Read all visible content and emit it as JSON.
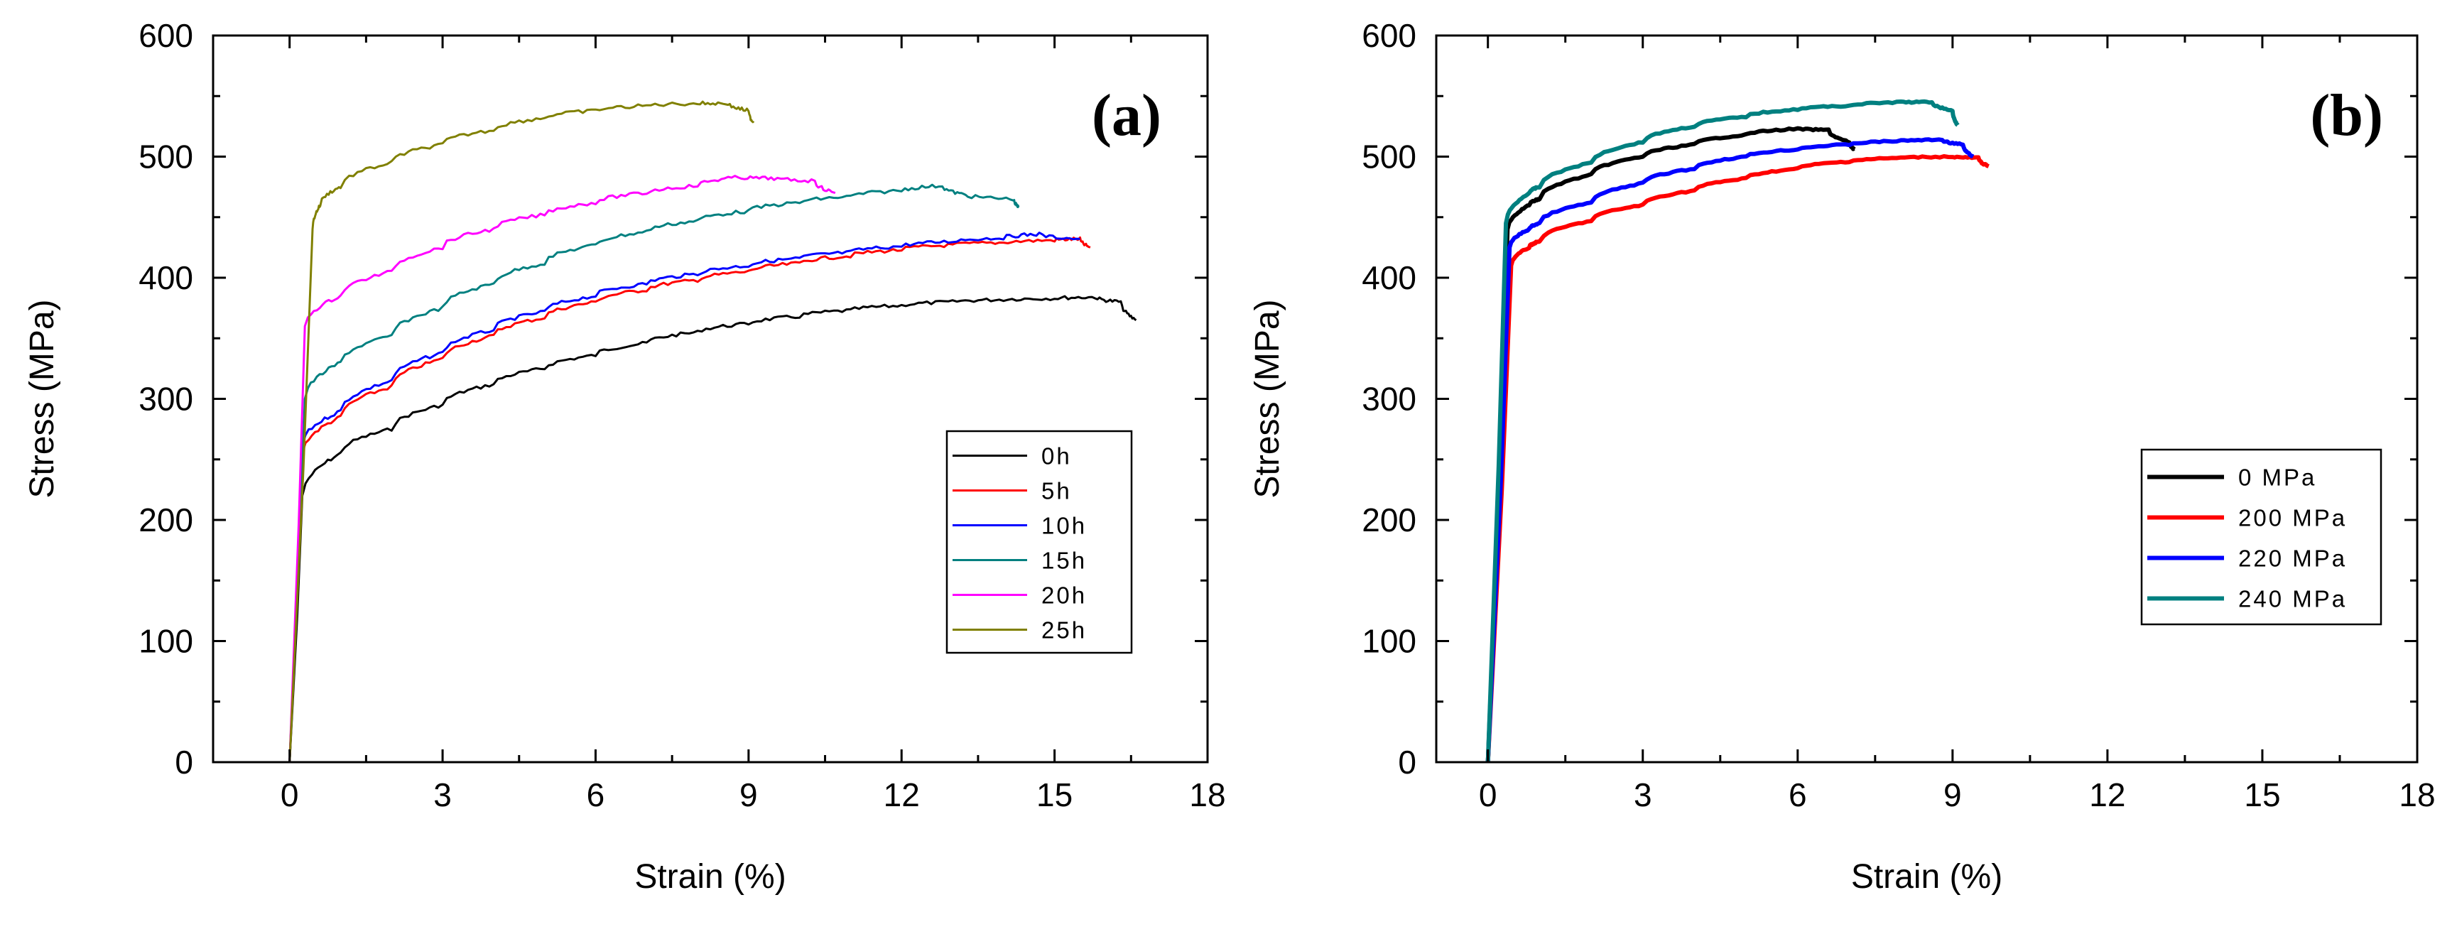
{
  "chart_data": [
    {
      "type": "line",
      "panel_label": "(a)",
      "xlabel": "Strain (%)",
      "ylabel": "Stress (MPa)",
      "xlim": [
        -1.5,
        18
      ],
      "ylim": [
        0,
        600
      ],
      "xticks": [
        0,
        3,
        6,
        9,
        12,
        15,
        18
      ],
      "yticks": [
        0,
        100,
        200,
        300,
        400,
        500,
        600
      ],
      "legend_position": "lower-right",
      "grid": false,
      "series": [
        {
          "name": "0h",
          "color": "#000000",
          "yield_strain": 0.25,
          "yield_stress": 220,
          "points": [
            [
              1,
              255
            ],
            [
              2,
              275
            ],
            [
              3,
              295
            ],
            [
              4,
              312
            ],
            [
              5,
              325
            ],
            [
              6,
              336
            ],
            [
              7,
              346
            ],
            [
              8,
              355
            ],
            [
              9,
              362
            ],
            [
              10,
              368
            ],
            [
              11,
              373
            ],
            [
              12,
              377
            ],
            [
              13,
              380
            ],
            [
              14,
              382
            ],
            [
              15,
              383
            ],
            [
              15.8,
              384
            ],
            [
              16.3,
              380
            ],
            [
              16.6,
              365
            ]
          ]
        },
        {
          "name": "5h",
          "color": "#ff0000",
          "yield_strain": 0.25,
          "yield_stress": 255,
          "points": [
            [
              1,
              285
            ],
            [
              2,
              310
            ],
            [
              3,
              333
            ],
            [
              4,
              352
            ],
            [
              5,
              367
            ],
            [
              6,
              380
            ],
            [
              7,
              390
            ],
            [
              8,
              398
            ],
            [
              9,
              405
            ],
            [
              10,
              412
            ],
            [
              11,
              418
            ],
            [
              12,
              423
            ],
            [
              13,
              427
            ],
            [
              14,
              429
            ],
            [
              15,
              431
            ],
            [
              15.5,
              432
            ],
            [
              15.7,
              425
            ]
          ]
        },
        {
          "name": "10h",
          "color": "#0000ff",
          "yield_strain": 0.25,
          "yield_stress": 262,
          "points": [
            [
              1,
              290
            ],
            [
              2,
              315
            ],
            [
              3,
              338
            ],
            [
              4,
              357
            ],
            [
              5,
              372
            ],
            [
              6,
              385
            ],
            [
              7,
              395
            ],
            [
              8,
              403
            ],
            [
              9,
              410
            ],
            [
              10,
              416
            ],
            [
              11,
              421
            ],
            [
              12,
              426
            ],
            [
              13,
              430
            ],
            [
              14,
              433
            ],
            [
              14.7,
              436
            ],
            [
              15.5,
              432
            ]
          ]
        },
        {
          "name": "15h",
          "color": "#008080",
          "yield_strain": 0.3,
          "yield_stress": 300,
          "points": [
            [
              1,
              330
            ],
            [
              2,
              352
            ],
            [
              3,
              375
            ],
            [
              4,
              395
            ],
            [
              5,
              412
            ],
            [
              6,
              427
            ],
            [
              7,
              438
            ],
            [
              8,
              447
            ],
            [
              9,
              455
            ],
            [
              10,
              462
            ],
            [
              11,
              467
            ],
            [
              12,
              472
            ],
            [
              12.8,
              476
            ],
            [
              13.3,
              468
            ],
            [
              14.2,
              465
            ],
            [
              14.3,
              458
            ]
          ]
        },
        {
          "name": "20h",
          "color": "#ff00ff",
          "yield_strain": 0.3,
          "yield_stress": 360,
          "points": [
            [
              1,
              385
            ],
            [
              2,
              405
            ],
            [
              3,
              425
            ],
            [
              4,
              440
            ],
            [
              5,
              452
            ],
            [
              6,
              462
            ],
            [
              7,
              470
            ],
            [
              8,
              476
            ],
            [
              8.8,
              483
            ],
            [
              9.5,
              482
            ],
            [
              10.3,
              480
            ],
            [
              10.7,
              470
            ]
          ]
        },
        {
          "name": "25h",
          "color": "#808000",
          "yield_strain": 0.45,
          "yield_stress": 440,
          "points": [
            [
              0.6,
              460
            ],
            [
              1,
              475
            ],
            [
              2,
              495
            ],
            [
              3,
              510
            ],
            [
              4,
              522
            ],
            [
              5,
              532
            ],
            [
              6,
              538
            ],
            [
              7,
              542
            ],
            [
              8,
              544
            ],
            [
              8.6,
              544
            ],
            [
              9,
              538
            ],
            [
              9.1,
              528
            ]
          ]
        }
      ]
    },
    {
      "type": "line",
      "panel_label": "(b)",
      "xlabel": "Strain (%)",
      "ylabel": "Stress (MPa)",
      "xlim": [
        -1,
        18
      ],
      "ylim": [
        0,
        600
      ],
      "xticks": [
        0,
        3,
        6,
        9,
        12,
        15,
        18
      ],
      "yticks": [
        0,
        100,
        200,
        300,
        400,
        500,
        600
      ],
      "legend_position": "left-center",
      "grid": false,
      "series": [
        {
          "name": "0 MPa",
          "color": "#000000",
          "yield_strain": 0.38,
          "yield_stress": 440,
          "points": [
            [
              0.8,
              460
            ],
            [
              1,
              465
            ],
            [
              2,
              485
            ],
            [
              3,
              500
            ],
            [
              4,
              510
            ],
            [
              5,
              518
            ],
            [
              6,
              523
            ],
            [
              6.6,
              522
            ],
            [
              7,
              512
            ],
            [
              7.1,
              506
            ]
          ]
        },
        {
          "name": "200 MPa",
          "color": "#ff0000",
          "yield_strain": 0.45,
          "yield_stress": 410,
          "points": [
            [
              0.8,
              425
            ],
            [
              1,
              430
            ],
            [
              2,
              447
            ],
            [
              3,
              460
            ],
            [
              4,
              472
            ],
            [
              5,
              482
            ],
            [
              6,
              490
            ],
            [
              7,
              496
            ],
            [
              8,
              499
            ],
            [
              9,
              500
            ],
            [
              9.5,
              499
            ],
            [
              9.7,
              492
            ]
          ]
        },
        {
          "name": "220 MPa",
          "color": "#0000ff",
          "yield_strain": 0.42,
          "yield_stress": 425,
          "points": [
            [
              0.8,
              440
            ],
            [
              1,
              445
            ],
            [
              2,
              462
            ],
            [
              3,
              478
            ],
            [
              4,
              490
            ],
            [
              5,
              500
            ],
            [
              6,
              506
            ],
            [
              7,
              510
            ],
            [
              8,
              513
            ],
            [
              8.8,
              514
            ],
            [
              9.2,
              510
            ],
            [
              9.4,
              500
            ]
          ]
        },
        {
          "name": "240 MPa",
          "color": "#008080",
          "yield_strain": 0.35,
          "yield_stress": 445,
          "points": [
            [
              0.8,
              470
            ],
            [
              1,
              475
            ],
            [
              2,
              495
            ],
            [
              3,
              512
            ],
            [
              4,
              525
            ],
            [
              5,
              533
            ],
            [
              6,
              539
            ],
            [
              7,
              542
            ],
            [
              8,
              545
            ],
            [
              8.6,
              545
            ],
            [
              9,
              538
            ],
            [
              9.1,
              526
            ]
          ]
        }
      ]
    }
  ]
}
